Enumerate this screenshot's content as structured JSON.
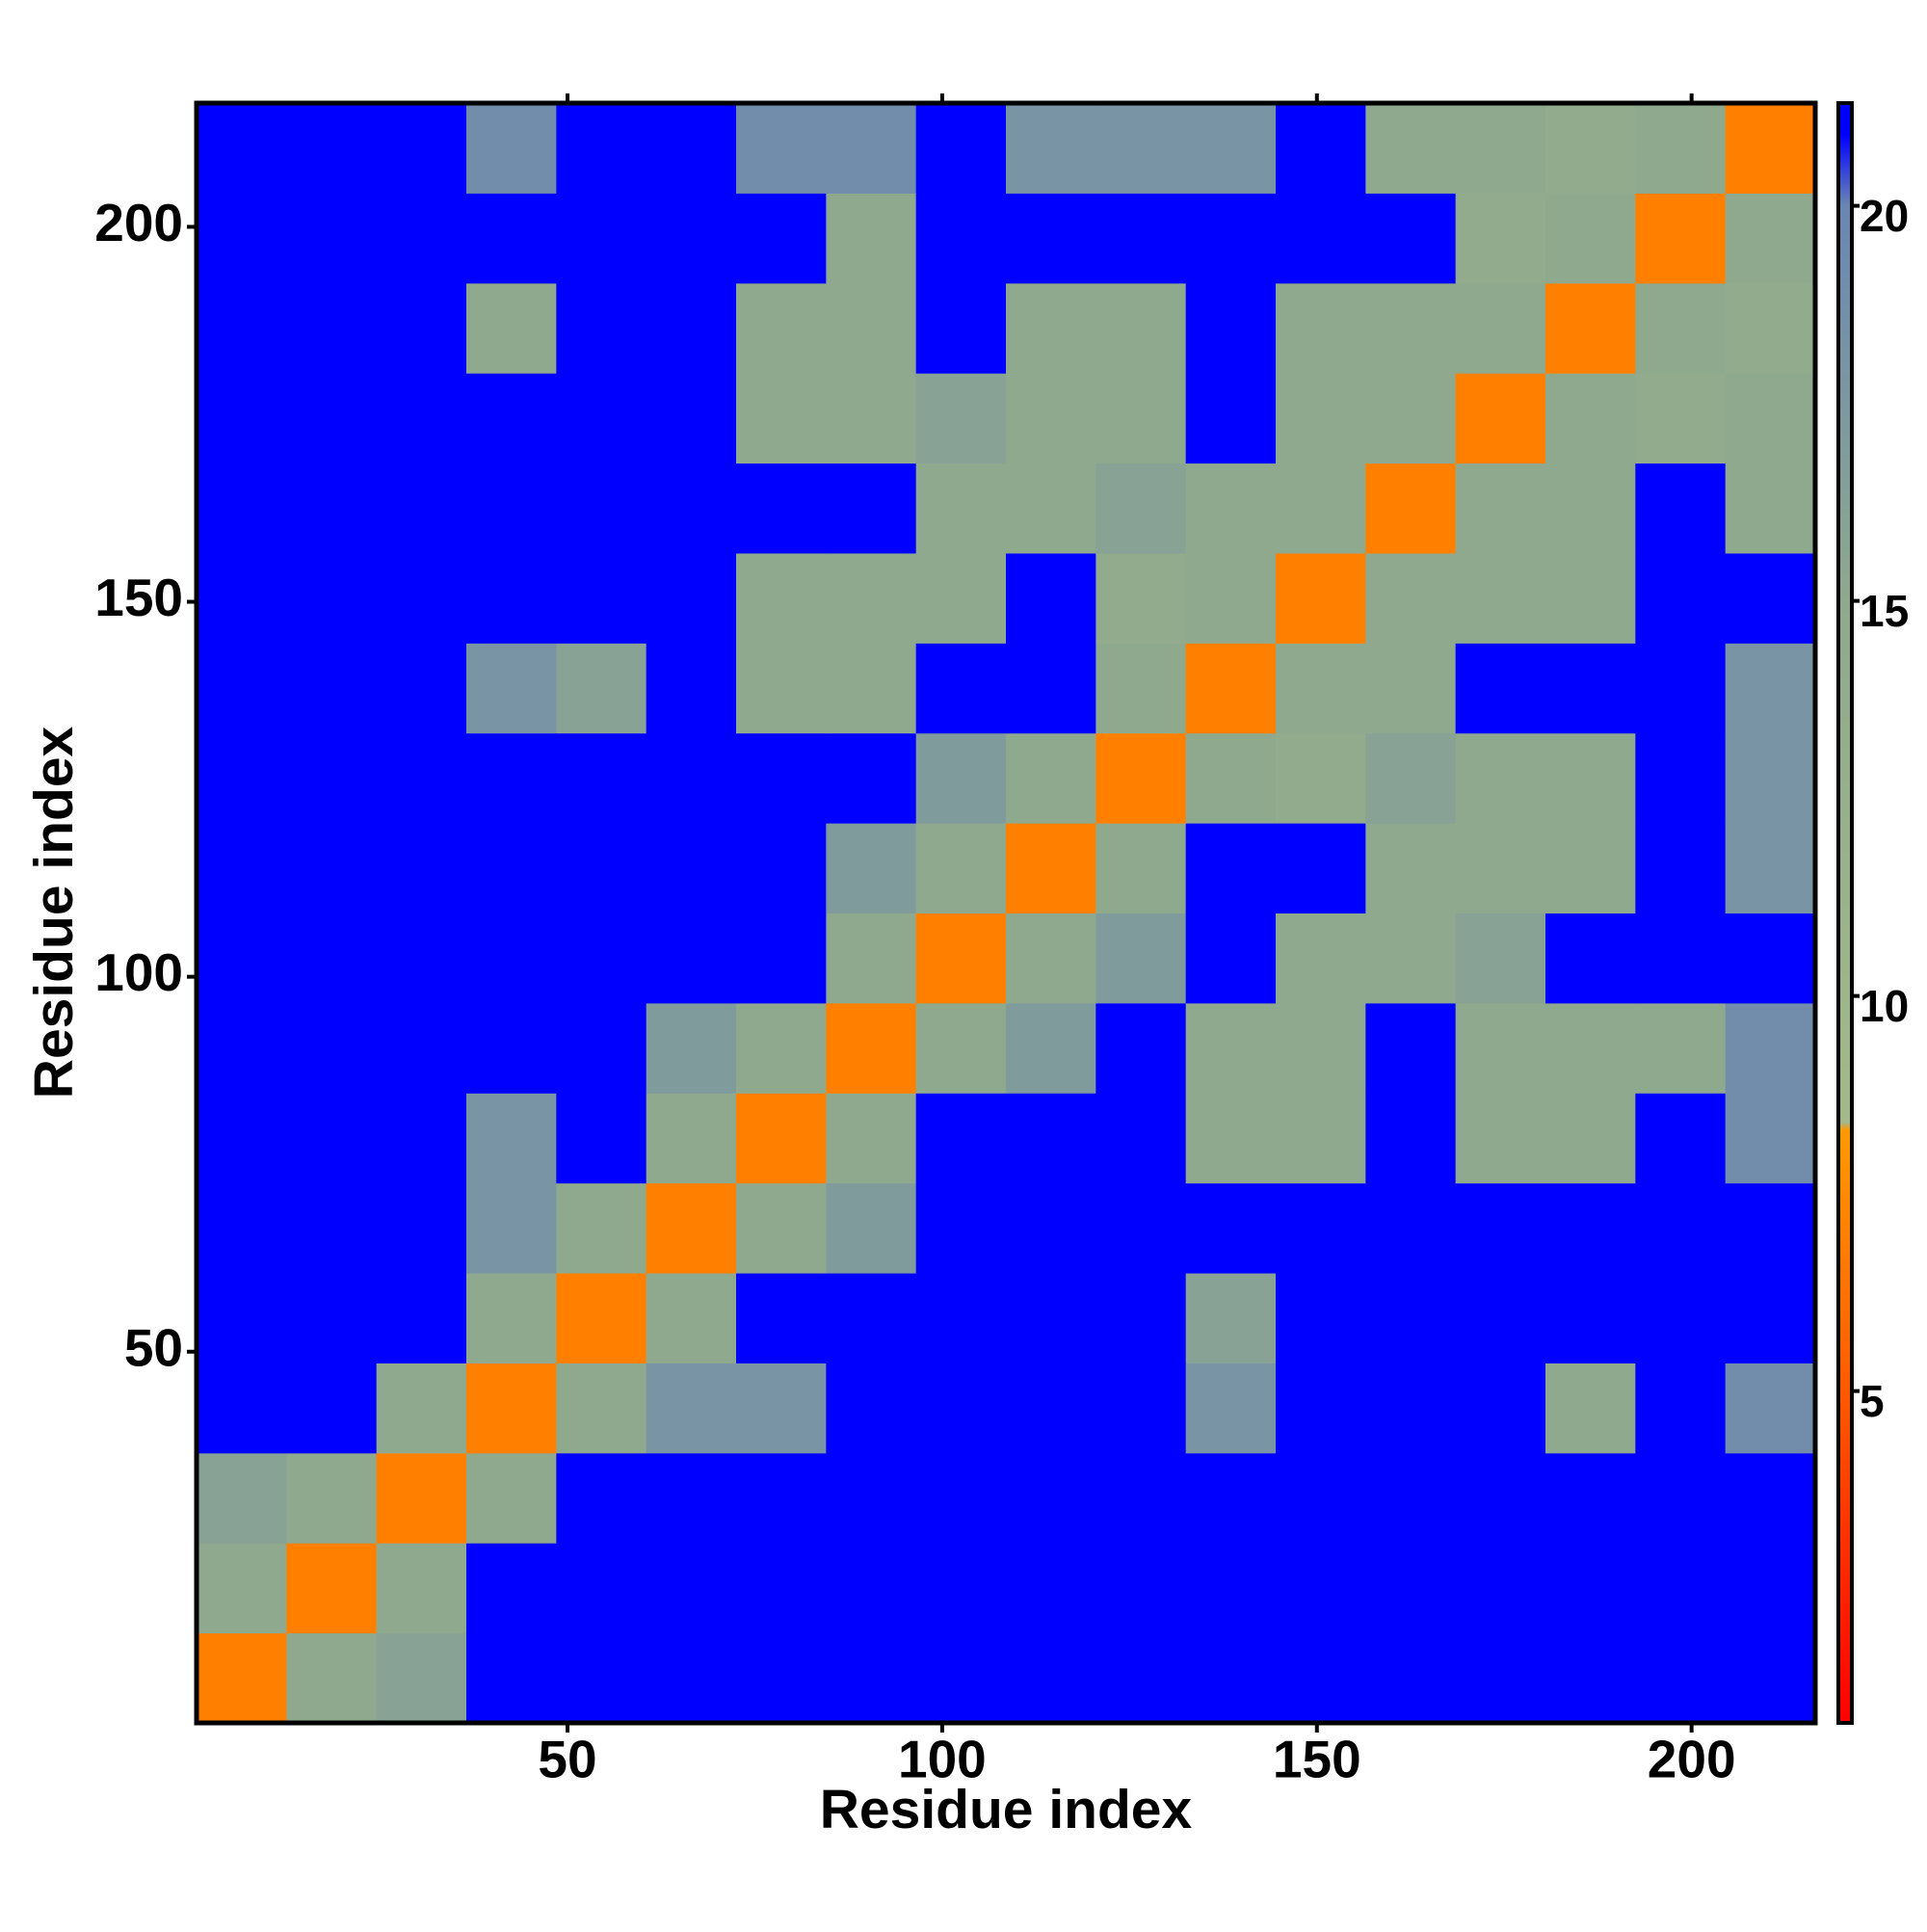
{
  "chart_data": {
    "type": "heatmap",
    "xlabel": "Residue index",
    "ylabel": "Residue index",
    "xlim": [
      0.5,
      216.5
    ],
    "ylim": [
      0.5,
      216.5
    ],
    "xticks": [
      50,
      100,
      150,
      200
    ],
    "yticks": [
      50,
      100,
      150,
      200
    ],
    "xbins": [
      0.5,
      12.5,
      24.5,
      36.5,
      48.5,
      60.5,
      72.5,
      84.5,
      96.5,
      108.5,
      120.5,
      132.5,
      144.5,
      156.5,
      168.5,
      180.5,
      192.5,
      204.5,
      216.5
    ],
    "ybins": [
      0.5,
      12.5,
      24.5,
      36.5,
      48.5,
      60.5,
      72.5,
      84.5,
      96.5,
      108.5,
      120.5,
      132.5,
      144.5,
      156.5,
      168.5,
      180.5,
      192.5,
      204.5,
      216.5
    ],
    "values": [
      [
        7,
        15,
        16,
        21,
        21,
        21,
        21,
        21,
        21,
        21,
        21,
        21,
        21,
        21,
        21,
        21,
        21,
        21
      ],
      [
        15,
        7,
        15,
        21,
        21,
        21,
        21,
        21,
        21,
        21,
        21,
        21,
        21,
        21,
        21,
        21,
        21,
        21
      ],
      [
        16,
        15,
        7,
        15,
        21,
        21,
        21,
        21,
        21,
        21,
        21,
        21,
        21,
        21,
        21,
        21,
        21,
        21
      ],
      [
        21,
        21,
        15,
        7,
        15,
        18,
        18,
        21,
        21,
        21,
        21,
        18,
        21,
        21,
        21,
        15,
        21,
        19
      ],
      [
        21,
        21,
        21,
        15,
        7,
        15,
        21,
        21,
        21,
        21,
        21,
        16,
        21,
        21,
        21,
        21,
        21,
        21
      ],
      [
        21,
        21,
        21,
        18,
        15,
        7,
        15,
        17,
        21,
        21,
        21,
        21,
        21,
        21,
        21,
        21,
        21,
        21
      ],
      [
        21,
        21,
        21,
        18,
        21,
        15,
        7,
        15,
        21,
        21,
        21,
        15,
        15,
        21,
        15,
        15,
        21,
        19
      ],
      [
        21,
        21,
        21,
        21,
        21,
        17,
        15,
        7,
        15,
        17,
        21,
        15,
        15,
        21,
        15,
        15,
        15,
        19
      ],
      [
        21,
        21,
        21,
        21,
        21,
        21,
        21,
        15,
        7,
        15,
        17,
        21,
        15,
        15,
        16,
        21,
        21,
        21
      ],
      [
        21,
        21,
        21,
        21,
        21,
        21,
        21,
        17,
        15,
        7,
        15,
        21,
        21,
        15,
        15,
        15,
        21,
        18
      ],
      [
        21,
        21,
        21,
        21,
        21,
        21,
        21,
        21,
        17,
        15,
        7,
        15,
        14,
        16,
        15,
        15,
        21,
        18
      ],
      [
        21,
        21,
        21,
        18,
        16,
        21,
        15,
        15,
        21,
        21,
        15,
        7,
        15,
        15,
        21,
        21,
        21,
        18
      ],
      [
        21,
        21,
        21,
        21,
        21,
        21,
        15,
        15,
        15,
        21,
        14,
        15,
        7,
        15,
        15,
        15,
        21,
        21
      ],
      [
        21,
        21,
        21,
        21,
        21,
        21,
        21,
        21,
        15,
        15,
        16,
        15,
        15,
        7,
        15,
        15,
        21,
        15
      ],
      [
        21,
        21,
        21,
        21,
        21,
        21,
        15,
        15,
        16,
        15,
        15,
        21,
        15,
        15,
        7,
        15,
        14,
        15
      ],
      [
        21,
        21,
        21,
        15,
        21,
        21,
        15,
        15,
        21,
        15,
        15,
        21,
        15,
        15,
        15,
        7,
        15,
        14
      ],
      [
        21,
        21,
        21,
        21,
        21,
        21,
        21,
        15,
        21,
        21,
        21,
        21,
        21,
        21,
        14,
        15,
        7,
        15
      ],
      [
        21,
        21,
        21,
        19,
        21,
        21,
        19,
        19,
        21,
        18,
        18,
        18,
        21,
        15,
        15,
        14,
        15,
        7
      ]
    ],
    "colorbar_lim": [
      0.8,
      21.3
    ],
    "colorbar_ticks": [
      5,
      10,
      15,
      20
    ],
    "colorscale": [
      [
        0.8,
        "#ff0000"
      ],
      [
        5,
        "#ff5a00"
      ],
      [
        8.3,
        "#ff9900"
      ],
      [
        8.4,
        "#a3b98a"
      ],
      [
        15,
        "#8fa98e"
      ],
      [
        20,
        "#6a86b2"
      ],
      [
        20.9,
        "#0000ff"
      ],
      [
        21.3,
        "#0000ff"
      ]
    ]
  }
}
